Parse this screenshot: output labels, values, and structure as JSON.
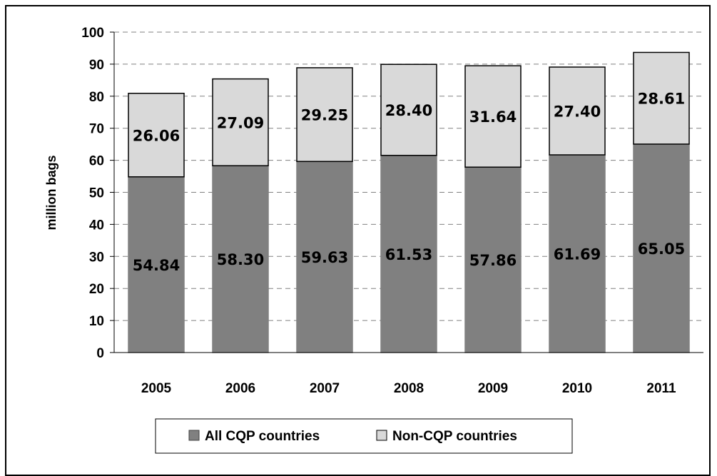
{
  "chart_data": {
    "type": "bar",
    "stacked": true,
    "categories": [
      "2005",
      "2006",
      "2007",
      "2008",
      "2009",
      "2010",
      "2011"
    ],
    "series": [
      {
        "name": "All CQP countries",
        "values": [
          54.84,
          58.3,
          59.63,
          61.53,
          57.86,
          61.69,
          65.05
        ],
        "labels": [
          "54.84",
          "58.30",
          "59.63",
          "61.53",
          "57.86",
          "61.69",
          "65.05"
        ],
        "color": "#808080"
      },
      {
        "name": "Non-CQP countries",
        "values": [
          26.06,
          27.09,
          29.25,
          28.4,
          31.64,
          27.4,
          28.61
        ],
        "labels": [
          "26.06",
          "27.09",
          "29.25",
          "28.40",
          "31.64",
          "27.40",
          "28.61"
        ],
        "color": "#d9d9d9"
      }
    ],
    "title": "",
    "xlabel": "",
    "ylabel": "million bags",
    "ylim": [
      0,
      100
    ],
    "yticks": [
      "0",
      "10",
      "20",
      "30",
      "40",
      "50",
      "60",
      "70",
      "80",
      "90",
      "100"
    ],
    "grid": "horizontal-dashed",
    "legend": "bottom"
  }
}
